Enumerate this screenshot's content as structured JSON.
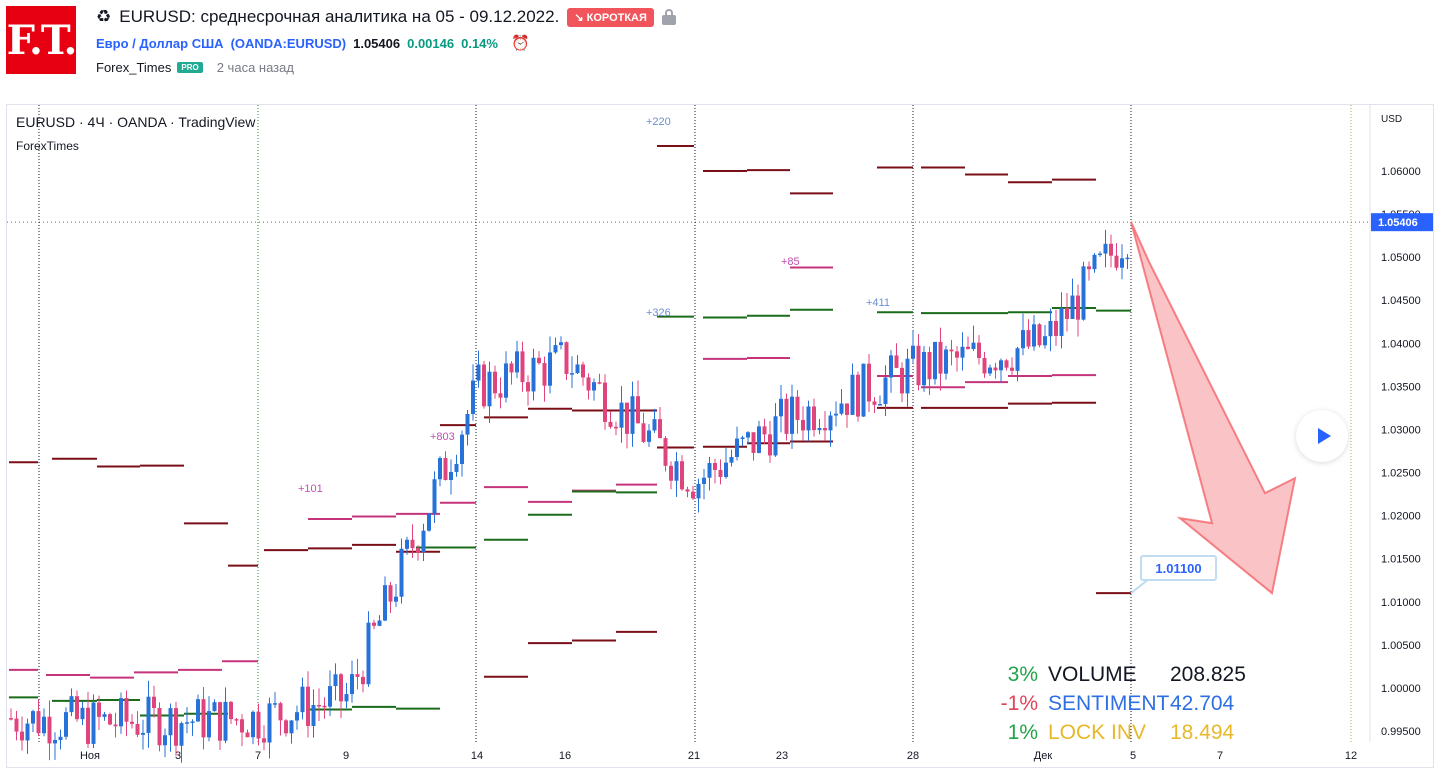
{
  "header": {
    "logo_text": "F.T.",
    "title": "EURUSD: среднесрочная аналитика на 05 - 09.12.2022.",
    "badge": "↘ КОРОТКАЯ",
    "symbol_name": "Евро / Доллар США",
    "symbol_code": "(OANDA:EURUSD)",
    "price": "1.05406",
    "change": "0.00146",
    "change_pct": "0.14%",
    "author": "Forex_Times",
    "author_badge": "PRO",
    "time_ago": "2 часа назад",
    "colors": {
      "logo_bg": "#e60012",
      "badge_bg": "#f2545b",
      "link": "#2962ff",
      "positive": "#089981"
    }
  },
  "chart_data": {
    "type": "candlestick",
    "symbol_line": "EURUSD · 4Ч · OANDA · TradingView",
    "watermark_line": "ForexTimes",
    "price_axis_unit": "USD",
    "y_ticks": [
      "1.06000",
      "1.05500",
      "1.05000",
      "1.04500",
      "1.04000",
      "1.03500",
      "1.03000",
      "1.02500",
      "1.02000",
      "1.01500",
      "1.01000",
      "1.00500",
      "1.00000",
      "0.99500"
    ],
    "y_range": [
      0.9945,
      1.0665
    ],
    "x_ticks": [
      "Ноя",
      "3",
      "7",
      "9",
      "14",
      "16",
      "21",
      "23",
      "28",
      "Дек",
      "5",
      "7",
      "12"
    ],
    "current_price": "1.05406",
    "target_price": "1.01100",
    "annotations": [
      "+220",
      "+326",
      "+85",
      "+411",
      "+101",
      "+803"
    ],
    "price_path": [
      {
        "x": "start",
        "y": 0.9965
      },
      {
        "x": "Ноя",
        "y": 0.996
      },
      {
        "x": "7",
        "y": 0.9965
      },
      {
        "x": "9",
        "y": 0.999
      },
      {
        "x": "14",
        "y": 1.035
      },
      {
        "x": "16",
        "y": 1.038
      },
      {
        "x": "21",
        "y": 1.024
      },
      {
        "x": "23",
        "y": 1.031
      },
      {
        "x": "28",
        "y": 1.037
      },
      {
        "x": "Дек",
        "y": 1.04
      },
      {
        "x": "5",
        "y": 1.0541
      }
    ],
    "forecast": {
      "from": 1.0541,
      "to": 1.011,
      "direction": "down"
    },
    "stats": [
      {
        "pct": "3%",
        "label": "VOLUME",
        "value": "208.825",
        "pct_color": "#22a34a",
        "label_color": "#131722"
      },
      {
        "pct": "-1%",
        "label": "SENTIMENT",
        "value": "42.704",
        "pct_color": "#e0445a",
        "label_color": "#2f6fe4"
      },
      {
        "pct": "1%",
        "label": "LOCK INV",
        "value": "18.494",
        "pct_color": "#22a34a",
        "label_color": "#e8b82a"
      }
    ],
    "colors": {
      "up": "#2672d8",
      "down": "#e0447d",
      "grid_dark": "#131722",
      "grid_green": "#2a8a3a",
      "current": "#2962ff"
    }
  }
}
